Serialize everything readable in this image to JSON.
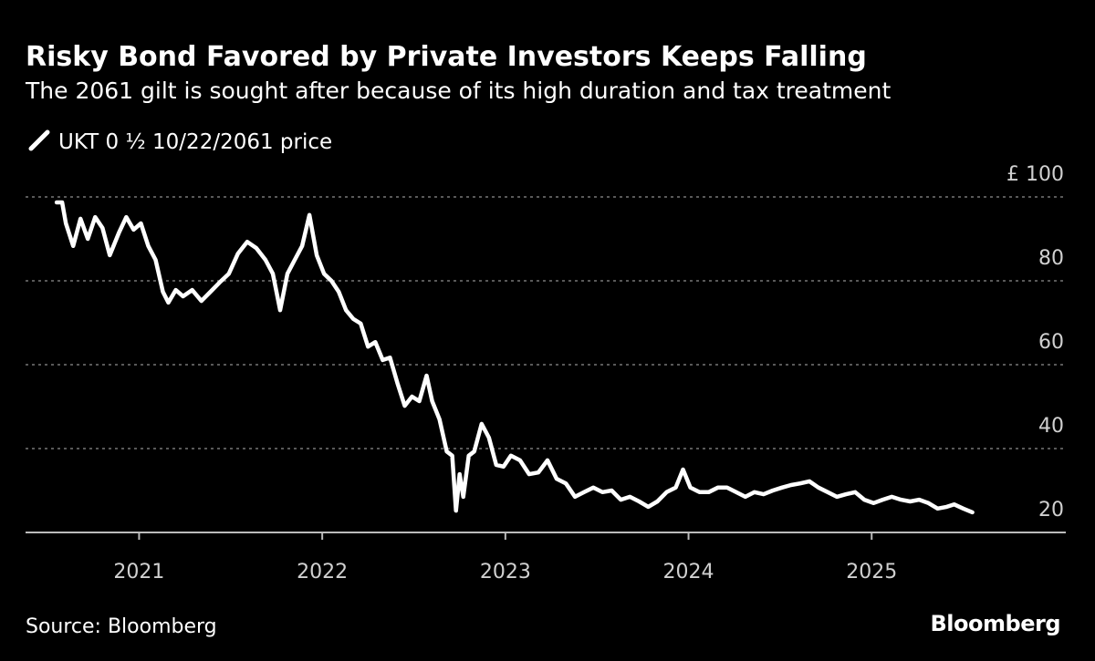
{
  "chart_data": {
    "type": "line",
    "title": "Risky Bond Favored by Private Investors Keeps Falling",
    "subtitle": "The 2061 gilt is sought after because of its high duration and tax treatment",
    "source": "Source: Bloomberg",
    "logo": "Bloomberg",
    "x": [
      2020.55,
      2020.58,
      2020.6,
      2020.64,
      2020.68,
      2020.72,
      2020.76,
      2020.8,
      2020.84,
      2020.89,
      2020.93,
      2020.97,
      2021.01,
      2021.05,
      2021.09,
      2021.13,
      2021.16,
      2021.2,
      2021.24,
      2021.29,
      2021.34,
      2021.39,
      2021.44,
      2021.49,
      2021.54,
      2021.59,
      2021.64,
      2021.69,
      2021.73,
      2021.77,
      2021.81,
      2021.85,
      2021.89,
      2021.93,
      2021.97,
      2022.01,
      2022.05,
      2022.09,
      2022.13,
      2022.17,
      2022.21,
      2022.25,
      2022.29,
      2022.33,
      2022.37,
      2022.41,
      2022.45,
      2022.49,
      2022.53,
      2022.57,
      2022.6,
      2022.64,
      2022.68,
      2022.71,
      2022.73,
      2022.75,
      2022.77,
      2022.8,
      2022.83,
      2022.87,
      2022.91,
      2022.95,
      2022.99,
      2023.03,
      2023.08,
      2023.13,
      2023.18,
      2023.23,
      2023.28,
      2023.33,
      2023.38,
      2023.43,
      2023.48,
      2023.53,
      2023.58,
      2023.63,
      2023.68,
      2023.73,
      2023.78,
      2023.83,
      2023.88,
      2023.93,
      2023.97,
      2024.01,
      2024.06,
      2024.11,
      2024.16,
      2024.21,
      2024.26,
      2024.31,
      2024.36,
      2024.41,
      2024.46,
      2024.51,
      2024.56,
      2024.61,
      2024.66,
      2024.71,
      2024.76,
      2024.81,
      2024.86,
      2024.91,
      2024.96,
      2025.01,
      2025.06,
      2025.11,
      2025.16,
      2025.21,
      2025.26,
      2025.31,
      2025.36,
      2025.41,
      2025.45,
      2025.5,
      2025.55
    ],
    "series": [
      {
        "name": "UKT 0 ½ 10/22/2061 price",
        "color": "#ffffff",
        "values": [
          98.7,
          98.7,
          93.7,
          88.3,
          94.8,
          90,
          95.2,
          92.6,
          86.1,
          91.5,
          95.2,
          92.2,
          93.7,
          88.3,
          85,
          77.4,
          74.8,
          77.8,
          76.3,
          77.8,
          75.2,
          77.4,
          79.6,
          81.7,
          86.5,
          89.3,
          87.8,
          85,
          81.7,
          73,
          81.7,
          85,
          88.3,
          95.7,
          86.1,
          81.7,
          80,
          77.4,
          73,
          70.9,
          69.8,
          64.3,
          65.4,
          61.1,
          61.7,
          55.7,
          50.2,
          52.4,
          51.3,
          57.4,
          51.3,
          47,
          39.3,
          38.3,
          25.2,
          33.9,
          28.5,
          38.3,
          39.3,
          45.9,
          42.6,
          36.1,
          35.7,
          38.3,
          37.2,
          33.9,
          34.3,
          37.2,
          32.8,
          31.7,
          28.5,
          29.6,
          30.7,
          29.6,
          30,
          27.8,
          28.5,
          27.4,
          26.1,
          27.4,
          29.6,
          30.7,
          35,
          30.7,
          29.6,
          29.6,
          30.7,
          30.7,
          29.6,
          28.5,
          29.6,
          29.1,
          30,
          30.7,
          31.3,
          31.7,
          32.2,
          30.7,
          29.6,
          28.5,
          29.1,
          29.6,
          27.8,
          27,
          27.8,
          28.5,
          27.8,
          27.4,
          27.8,
          27,
          25.7,
          26.1,
          26.7,
          25.7,
          24.8
        ]
      }
    ],
    "xlim": [
      2020.38,
      2026.06
    ],
    "xticks": [
      2021,
      2022,
      2023,
      2024,
      2025
    ],
    "ylim": [
      20,
      100
    ],
    "yticks": [
      20,
      40,
      60,
      80,
      {
        "value": 100,
        "label": "£ 100"
      }
    ],
    "grid": true
  }
}
